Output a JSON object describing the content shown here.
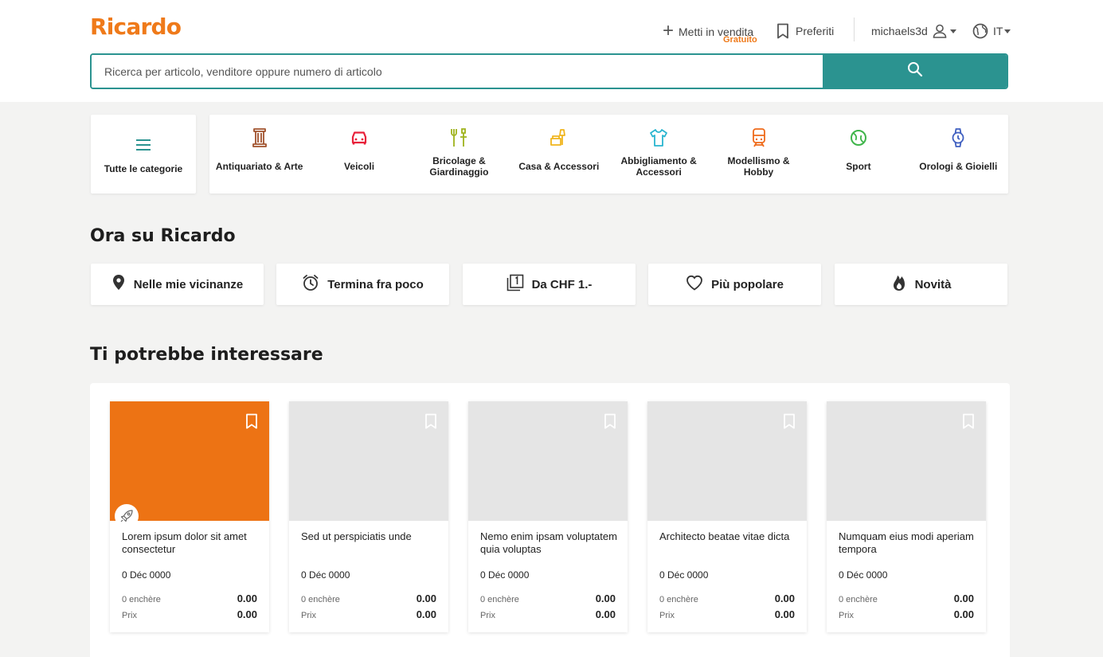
{
  "brand": {
    "logo": "Ricardo",
    "accent": "#ef7a1a",
    "teal": "#2b9390"
  },
  "header": {
    "sell_label": "Metti in vendita",
    "sell_sub": "Gratuito",
    "favorites_label": "Preferiti",
    "username": "michaels3d",
    "language": "IT"
  },
  "search": {
    "placeholder": "Ricerca per articolo, venditore oppure numero di articolo"
  },
  "categories": {
    "all_label": "Tutte le categorie",
    "items": [
      {
        "label": "Antiquariato & Arte",
        "icon": "column-icon",
        "color": "#a0522d"
      },
      {
        "label": "Veicoli",
        "icon": "car-icon",
        "color": "#e8213a"
      },
      {
        "label": "Bricolage & Giardinaggio",
        "icon": "tools-icon",
        "color": "#9fb21c"
      },
      {
        "label": "Casa & Accessori",
        "icon": "furniture-icon",
        "color": "#f0b51c"
      },
      {
        "label": "Abbigliamento & Accessori",
        "icon": "shirt-icon",
        "color": "#28b5cf"
      },
      {
        "label": "Modellismo & Hobby",
        "icon": "train-icon",
        "color": "#ef6a1a"
      },
      {
        "label": "Sport",
        "icon": "tennis-ball-icon",
        "color": "#3fb54a"
      },
      {
        "label": "Orologi & Gioielli",
        "icon": "watch-icon",
        "color": "#3f5fc0"
      }
    ]
  },
  "now": {
    "title": "Ora su Ricardo",
    "items": [
      {
        "label": "Nelle mie vicinanze",
        "icon": "location-pin-icon"
      },
      {
        "label": "Termina fra poco",
        "icon": "alarm-clock-icon"
      },
      {
        "label": "Da CHF 1.-",
        "icon": "one-chf-icon"
      },
      {
        "label": "Più popolare",
        "icon": "heart-icon"
      },
      {
        "label": "Novità",
        "icon": "flame-icon"
      }
    ]
  },
  "recommend": {
    "title": "Ti potrebbe interessare",
    "items": [
      {
        "title": "Lorem ipsum dolor sit amet consectetur",
        "date": "0 Déc 0000",
        "bids_label": "0 enchère",
        "bids_value": "0.00",
        "price_label": "Prix",
        "price_value": "0.00",
        "image_color": "#ed7314",
        "promoted": true
      },
      {
        "title": "Sed ut perspiciatis unde",
        "date": "0 Déc 0000",
        "bids_label": "0 enchère",
        "bids_value": "0.00",
        "price_label": "Prix",
        "price_value": "0.00",
        "image_color": "#e5e5e5",
        "promoted": false
      },
      {
        "title": "Nemo enim ipsam voluptatem quia voluptas",
        "date": "0 Déc 0000",
        "bids_label": "0 enchère",
        "bids_value": "0.00",
        "price_label": "Prix",
        "price_value": "0.00",
        "image_color": "#e5e5e5",
        "promoted": false
      },
      {
        "title": "Architecto beatae vitae dicta",
        "date": "0 Déc 0000",
        "bids_label": "0 enchère",
        "bids_value": "0.00",
        "price_label": "Prix",
        "price_value": "0.00",
        "image_color": "#e5e5e5",
        "promoted": false
      },
      {
        "title": "Numquam eius modi aperiam tempora",
        "date": "0 Déc 0000",
        "bids_label": "0 enchère",
        "bids_value": "0.00",
        "price_label": "Prix",
        "price_value": "0.00",
        "image_color": "#e5e5e5",
        "promoted": false
      }
    ]
  }
}
